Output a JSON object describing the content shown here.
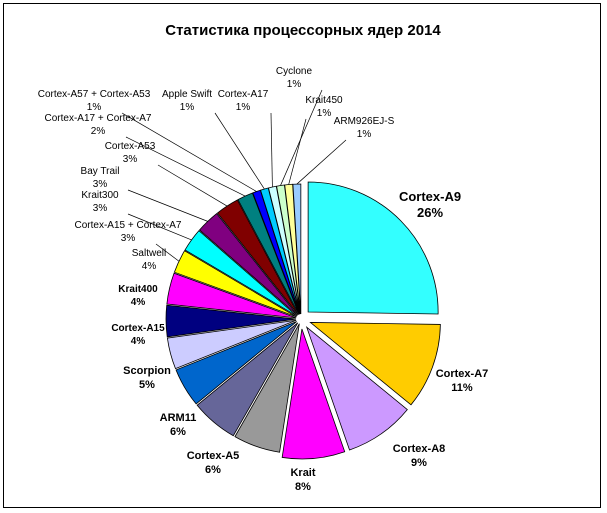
{
  "chart_data": {
    "type": "pie",
    "title": "Статистика процессорных ядер 2014",
    "slices": [
      {
        "label": "Cortex-A9",
        "value": 26,
        "pct": "26%",
        "color": "#33ffff"
      },
      {
        "label": "Cortex-A7",
        "value": 11,
        "pct": "11%",
        "color": "#ffcc00"
      },
      {
        "label": "Cortex-A8",
        "value": 9,
        "pct": "9%",
        "color": "#cc99ff"
      },
      {
        "label": "Krait",
        "value": 8,
        "pct": "8%",
        "color": "#ff00ff"
      },
      {
        "label": "Cortex-A5",
        "value": 6,
        "pct": "6%",
        "color": "#999999"
      },
      {
        "label": "ARM11",
        "value": 6,
        "pct": "6%",
        "color": "#666699"
      },
      {
        "label": "Scorpion",
        "value": 5,
        "pct": "5%",
        "color": "#0066cc"
      },
      {
        "label": "Cortex-A15",
        "value": 4,
        "pct": "4%",
        "color": "#ccccff"
      },
      {
        "label": "Krait400",
        "value": 4,
        "pct": "4%",
        "color": "#000080"
      },
      {
        "label": "Saltwell",
        "value": 4,
        "pct": "4%",
        "color": "#ff00ff"
      },
      {
        "label": "Cortex-A15 + Cortex-A7",
        "value": 3,
        "pct": "3%",
        "color": "#ffff00"
      },
      {
        "label": "Krait300",
        "value": 3,
        "pct": "3%",
        "color": "#00ffff"
      },
      {
        "label": "Bay Trail",
        "value": 3,
        "pct": "3%",
        "color": "#800080"
      },
      {
        "label": "Cortex-A53",
        "value": 3,
        "pct": "3%",
        "color": "#800000"
      },
      {
        "label": "Cortex-A17 + Cortex-A7",
        "value": 2,
        "pct": "2%",
        "color": "#008080"
      },
      {
        "label": "Cortex-A57 + Cortex-A53",
        "value": 1,
        "pct": "1%",
        "color": "#0000ff"
      },
      {
        "label": "Apple Swift",
        "value": 1,
        "pct": "1%",
        "color": "#00ccff"
      },
      {
        "label": "Cortex-A17",
        "value": 1,
        "pct": "1%",
        "color": "#ccffff"
      },
      {
        "label": "Cyclone",
        "value": 1,
        "pct": "1%",
        "color": "#ccffcc"
      },
      {
        "label": "Krait450",
        "value": 1,
        "pct": "1%",
        "color": "#ffff99"
      },
      {
        "label": "ARM926EJ-S",
        "value": 1,
        "pct": "1%",
        "color": "#99ccff"
      }
    ]
  }
}
